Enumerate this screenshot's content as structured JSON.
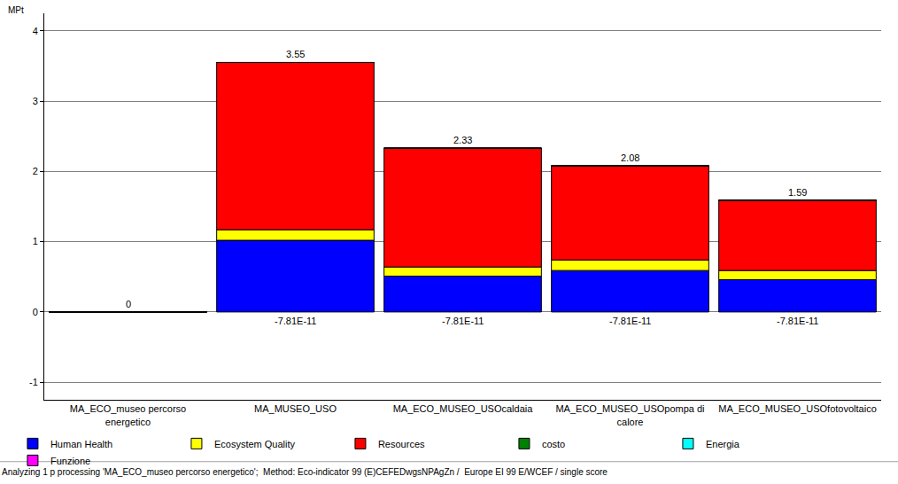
{
  "chart_data": {
    "type": "bar",
    "stacked": true,
    "y_label": "MPt",
    "footer": "Analyzing 1 p processing 'MA_ECO_museo percorso energetico';  Method: Eco-indicator 99 (E)CEFEDwgsNPAgZn /  Europe EI 99 E/WCEF / single score",
    "categories": [
      "MA_ECO_museo percorso energetico",
      "MA_MUSEO_USO",
      "MA_ECO_MUSEO_USOcaldaia",
      "MA_ECO_MUSEO_USOpompa di calore",
      "MA_ECO_MUSEO_USOfotovoltaico"
    ],
    "series": [
      {
        "name": "Human Health",
        "color": "#0000ff",
        "values": [
          0,
          1.02,
          0.51,
          0.59,
          0.46
        ]
      },
      {
        "name": "Ecosystem Quality",
        "color": "#ffff00",
        "values": [
          0,
          0.15,
          0.13,
          0.15,
          0.13
        ]
      },
      {
        "name": "Resources",
        "color": "#ff0000",
        "values": [
          0,
          2.38,
          1.69,
          1.34,
          1.0
        ]
      },
      {
        "name": "costo",
        "color": "#008000",
        "values": [
          0,
          0,
          0,
          0,
          0
        ]
      },
      {
        "name": "Energia",
        "color": "#00ffff",
        "values": [
          0,
          0,
          0,
          0,
          0
        ]
      },
      {
        "name": "Funzione",
        "color": "#ff00ff",
        "values": [
          0,
          0,
          0,
          0,
          0
        ]
      }
    ],
    "totals": {
      "values": [
        0,
        3.55,
        2.33,
        2.08,
        1.59
      ]
    },
    "negative_totals": {
      "values": [
        null,
        -7.81e-11,
        -7.81e-11,
        -7.81e-11,
        -7.81e-11
      ],
      "value_labels": [
        null,
        "-7.81E-11",
        "-7.81E-11",
        "-7.81E-11",
        "-7.81E-11"
      ]
    },
    "ylim": [
      -1.25,
      4.25
    ],
    "yticks": [
      -1,
      0,
      1,
      2,
      3,
      4
    ],
    "grid": true,
    "legend": "bottom"
  }
}
